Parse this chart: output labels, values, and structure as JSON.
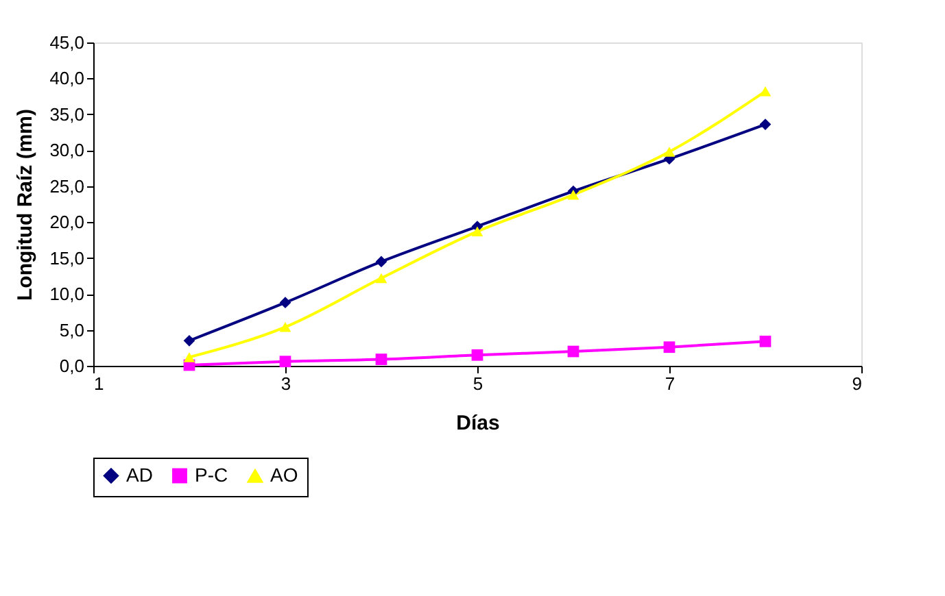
{
  "chart_data": {
    "type": "line",
    "xlabel": "Días",
    "ylabel": "Longitud Raíz (mm)",
    "x": [
      2,
      3,
      4,
      5,
      6,
      7,
      8
    ],
    "series": [
      {
        "name": "AD",
        "color": "#000080",
        "marker": "diamond",
        "values": [
          3.5,
          8.8,
          14.5,
          19.4,
          24.3,
          28.8,
          33.6
        ]
      },
      {
        "name": "P-C",
        "color": "#ff00ff",
        "marker": "square",
        "values": [
          0.1,
          0.6,
          0.9,
          1.5,
          2.0,
          2.6,
          3.4
        ]
      },
      {
        "name": "AO",
        "color": "#ffff00",
        "marker": "triangle",
        "values": [
          1.2,
          5.4,
          12.2,
          18.7,
          23.8,
          29.8,
          38.2
        ]
      }
    ],
    "xlim": [
      1,
      9
    ],
    "xticks": [
      1,
      3,
      5,
      7,
      9
    ],
    "ylim": [
      0,
      45
    ],
    "yticks": [
      {
        "value": 0,
        "label": "0,0"
      },
      {
        "value": 5,
        "label": "5,0"
      },
      {
        "value": 10,
        "label": "10,0"
      },
      {
        "value": 15,
        "label": "15,0"
      },
      {
        "value": 20,
        "label": "20,0"
      },
      {
        "value": 25,
        "label": "25,0"
      },
      {
        "value": 30,
        "label": "30,0"
      },
      {
        "value": 35,
        "label": "35,0"
      },
      {
        "value": 40,
        "label": "40,0"
      },
      {
        "value": 45,
        "label": "45,0"
      }
    ],
    "grid": false,
    "legend": "bottom",
    "line_style": "solid"
  }
}
